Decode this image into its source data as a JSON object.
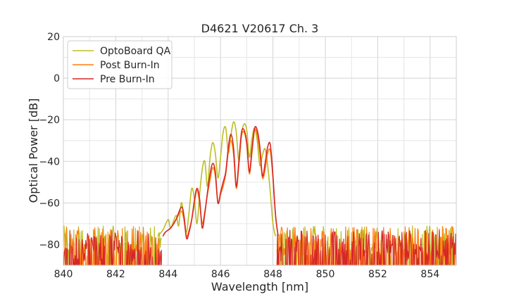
{
  "chart_data": {
    "type": "line",
    "title": "D4621 V20617 Ch. 3",
    "xlabel": "Wavelength [nm]",
    "ylabel": "Optical Power [dB]",
    "xlim": [
      840,
      855
    ],
    "ylim": [
      -90,
      20
    ],
    "xticks": [
      "840",
      "842",
      "844",
      "846",
      "848",
      "850",
      "852",
      "854"
    ],
    "yticks": [
      "20",
      "0",
      "−20",
      "−40",
      "−60",
      "−80"
    ],
    "grid": true,
    "legend_position": "top-left",
    "noise_floor": -84,
    "series": [
      {
        "name": "OptoBoard QA",
        "color": "#bcbd22",
        "points": [
          [
            843.6,
            -76
          ],
          [
            843.8,
            -73
          ],
          [
            844.0,
            -68
          ],
          [
            844.1,
            -72
          ],
          [
            844.3,
            -66
          ],
          [
            844.4,
            -71
          ],
          [
            844.5,
            -60
          ],
          [
            844.6,
            -66
          ],
          [
            844.7,
            -74
          ],
          [
            844.8,
            -64
          ],
          [
            844.9,
            -53
          ],
          [
            845.0,
            -58
          ],
          [
            845.1,
            -70
          ],
          [
            845.2,
            -56
          ],
          [
            845.3,
            -44
          ],
          [
            845.4,
            -40
          ],
          [
            845.5,
            -52
          ],
          [
            845.6,
            -38
          ],
          [
            845.7,
            -31
          ],
          [
            845.8,
            -36
          ],
          [
            845.9,
            -48
          ],
          [
            846.0,
            -38
          ],
          [
            846.1,
            -26
          ],
          [
            846.2,
            -24
          ],
          [
            846.3,
            -36
          ],
          [
            846.4,
            -27
          ],
          [
            846.5,
            -21
          ],
          [
            846.6,
            -26
          ],
          [
            846.7,
            -40
          ],
          [
            846.8,
            -27
          ],
          [
            846.9,
            -22
          ],
          [
            847.0,
            -25
          ],
          [
            847.1,
            -38
          ],
          [
            847.2,
            -29
          ],
          [
            847.3,
            -24
          ],
          [
            847.4,
            -30
          ],
          [
            847.5,
            -42
          ],
          [
            847.6,
            -37
          ],
          [
            847.7,
            -34
          ],
          [
            847.8,
            -42
          ],
          [
            847.9,
            -55
          ],
          [
            848.0,
            -70
          ],
          [
            848.1,
            -76
          ]
        ]
      },
      {
        "name": "Post Burn-In",
        "color": "#ff7f0e",
        "points": [
          [
            843.8,
            -76
          ],
          [
            843.9,
            -74
          ],
          [
            844.1,
            -72
          ],
          [
            844.3,
            -68
          ],
          [
            844.5,
            -64
          ],
          [
            844.6,
            -68
          ],
          [
            844.7,
            -76
          ],
          [
            844.8,
            -73
          ],
          [
            844.9,
            -68
          ],
          [
            845.0,
            -60
          ],
          [
            845.1,
            -54
          ],
          [
            845.2,
            -60
          ],
          [
            845.3,
            -70
          ],
          [
            845.4,
            -64
          ],
          [
            845.5,
            -56
          ],
          [
            845.6,
            -49
          ],
          [
            845.7,
            -43
          ],
          [
            845.8,
            -47
          ],
          [
            845.9,
            -60
          ],
          [
            846.0,
            -56
          ],
          [
            846.1,
            -52
          ],
          [
            846.2,
            -46
          ],
          [
            846.3,
            -35
          ],
          [
            846.4,
            -30
          ],
          [
            846.5,
            -37
          ],
          [
            846.6,
            -53
          ],
          [
            846.7,
            -42
          ],
          [
            846.8,
            -28
          ],
          [
            846.9,
            -26
          ],
          [
            847.0,
            -32
          ],
          [
            847.1,
            -46
          ],
          [
            847.2,
            -36
          ],
          [
            847.3,
            -25
          ],
          [
            847.4,
            -27
          ],
          [
            847.5,
            -36
          ],
          [
            847.6,
            -48
          ],
          [
            847.7,
            -44
          ],
          [
            847.8,
            -36
          ],
          [
            847.9,
            -35
          ],
          [
            848.0,
            -48
          ],
          [
            848.1,
            -66
          ],
          [
            848.2,
            -76
          ]
        ]
      },
      {
        "name": "Pre Burn-In",
        "color": "#d62728",
        "points": [
          [
            843.8,
            -76
          ],
          [
            843.9,
            -74
          ],
          [
            844.1,
            -72
          ],
          [
            844.3,
            -68
          ],
          [
            844.5,
            -62
          ],
          [
            844.6,
            -66
          ],
          [
            844.7,
            -77
          ],
          [
            844.8,
            -74
          ],
          [
            844.9,
            -68
          ],
          [
            845.0,
            -59
          ],
          [
            845.1,
            -53
          ],
          [
            845.2,
            -58
          ],
          [
            845.3,
            -72
          ],
          [
            845.4,
            -65
          ],
          [
            845.5,
            -55
          ],
          [
            845.6,
            -46
          ],
          [
            845.7,
            -41
          ],
          [
            845.8,
            -45
          ],
          [
            845.9,
            -60
          ],
          [
            846.0,
            -55
          ],
          [
            846.1,
            -50
          ],
          [
            846.2,
            -45
          ],
          [
            846.3,
            -33
          ],
          [
            846.4,
            -27
          ],
          [
            846.5,
            -34
          ],
          [
            846.6,
            -52
          ],
          [
            846.7,
            -40
          ],
          [
            846.8,
            -26
          ],
          [
            846.9,
            -25
          ],
          [
            847.0,
            -31
          ],
          [
            847.1,
            -45
          ],
          [
            847.2,
            -34
          ],
          [
            847.3,
            -24
          ],
          [
            847.4,
            -25
          ],
          [
            847.5,
            -33
          ],
          [
            847.6,
            -47
          ],
          [
            847.7,
            -41
          ],
          [
            847.8,
            -33
          ],
          [
            847.9,
            -32
          ],
          [
            848.0,
            -47
          ],
          [
            848.1,
            -66
          ],
          [
            848.2,
            -76
          ]
        ]
      }
    ]
  }
}
